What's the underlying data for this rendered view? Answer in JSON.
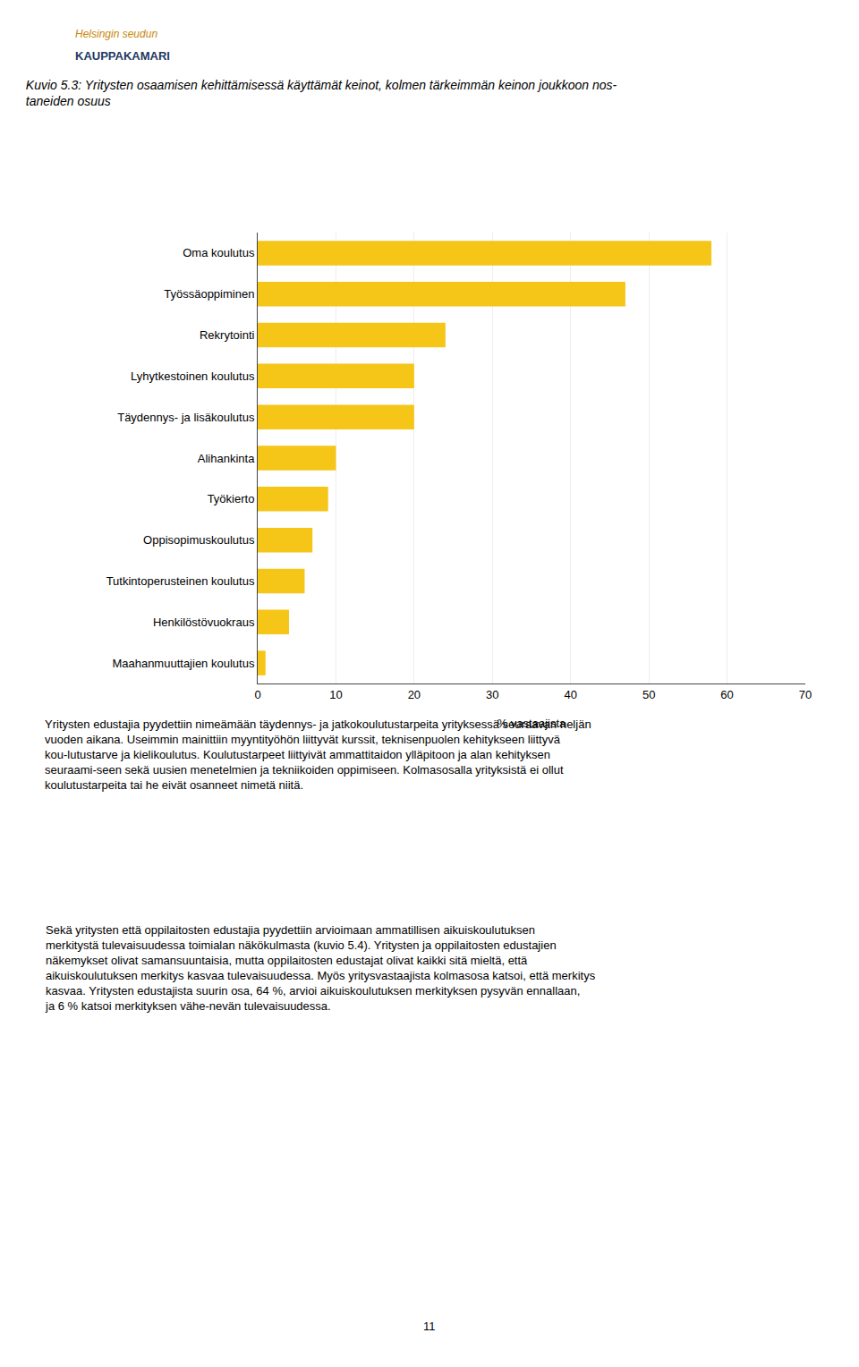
{
  "chart_data": {
    "type": "bar",
    "orientation": "horizontal",
    "title": "Kuvio 5.3: Yritysten osaamisen kehittämisessä käyttämät keinot, kolmen tärkeimmän keinon joukkoon nos-\ntaneiden osuus",
    "xlabel": "% vastaajista",
    "categories": [
      "Oma koulutus",
      "Työssäoppiminen",
      "Rekrytointi",
      "Lyhytkestoinen koulutus",
      "Täydennys- ja lisäkoulutus",
      "Alihankinta",
      "Työkierto",
      "Oppisopimuskoulutus",
      "Tutkintoperusteinen koulutus",
      "Henkilöstövuokraus",
      "Maahanmuuttajien koulutus"
    ],
    "values": [
      58,
      47,
      24,
      20,
      20,
      10,
      9,
      7,
      6,
      4,
      1
    ],
    "color": "#F5C518",
    "xlim": [
      0,
      70
    ],
    "xticks": [
      0,
      10,
      20,
      30,
      40,
      50,
      60,
      70
    ],
    "grid": true,
    "annotations": [
      "Helsingin seudun",
      "KAUPPAKAMARI",
      "Yritysten edustajia pyydettiin nimeämään täydennys- ja jatkokoulutustarpeita yrityksessä seuraavan neljän vuoden aikana. Useimmin mainittiin myyntityöhön liittyvät kurssit, teknisenpuolen kehitykseen liittyvä kou-lutustarve ja kielikoulutus. Koulutustarpeet liittyivät ammattitaidon ylläpitoon ja alan kehityksen seuraami-seen sekä uusien menetelmien ja tekniikoiden oppimiseen. Kolmasosalla yrityksistä ei ollut koulutustarpeita tai he eivät osanneet nimetä niitä.",
      "Sekä yritysten että oppilaitosten edustajia pyydettiin arvioimaan ammatillisen aikuiskoulutuksen merkitystä tulevaisuudessa toimialan näkökulmasta (kuvio 5.4). Yritysten ja oppilaitosten edustajien näkemykset olivat samansuuntaisia, mutta oppilaitosten edustajat olivat kaikki sitä mieltä, että aikuiskoulutuksen merkitys kasvaa tulevaisuudessa. Myös yritysvastaajista kolmasosa katsoi, että merkitys kasvaa. Yritysten edustajista suurin osa, 64 %, arvioi aikuiskoulutuksen merkityksen pysyvän ennallaan, ja 6 % katsoi merkityksen vähe-nevän tulevaisuudessa.",
      "11"
    ]
  }
}
